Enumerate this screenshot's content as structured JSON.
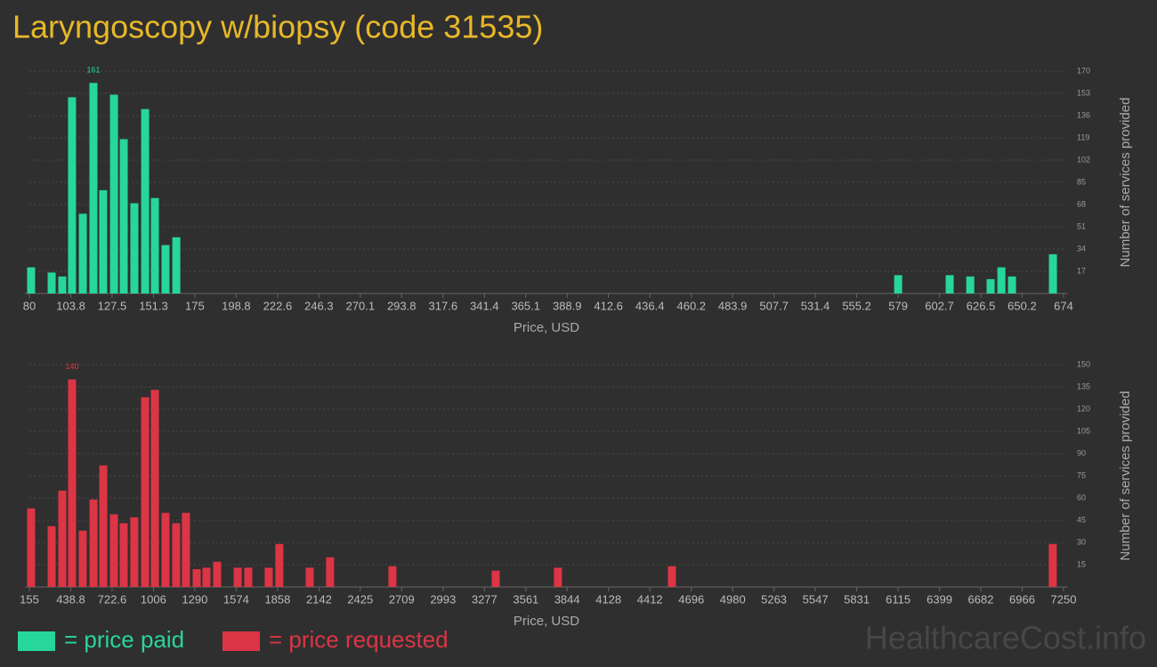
{
  "title": "Laryngoscopy w/biopsy (code 31535)",
  "watermark": "HealthcareCost.info",
  "chart_data": [
    {
      "type": "bar",
      "x": [
        81.0,
        92.8,
        98.9,
        104.5,
        110.7,
        116.8,
        122.4,
        128.6,
        134.2,
        140.3,
        146.5,
        152.1,
        158.2,
        164.4,
        579.0,
        608.6,
        620.4,
        632.1,
        638.3,
        644.4,
        667.9
      ],
      "series": [
        {
          "name": "= price paid",
          "color": "#27d69a",
          "values": [
            20,
            16,
            13,
            150,
            61,
            161,
            79,
            152,
            118,
            69,
            141,
            73,
            37,
            43,
            14,
            14,
            13,
            11,
            20,
            13,
            30
          ]
        }
      ],
      "xlim": [
        80,
        674
      ],
      "xticks": [
        80,
        103.8,
        127.5,
        151.3,
        175,
        198.8,
        222.6,
        246.3,
        270.1,
        293.8,
        317.6,
        341.4,
        365.1,
        388.9,
        412.6,
        436.4,
        460.2,
        483.9,
        507.7,
        531.4,
        555.2,
        579,
        602.7,
        626.5,
        650.2,
        674
      ],
      "ylim": [
        0,
        170
      ],
      "yticks": [
        17,
        34,
        51,
        68,
        85,
        102,
        119,
        136,
        153,
        170
      ],
      "xlabel": "Price, USD",
      "ylabel": "Number of services provided",
      "grid": true
    },
    {
      "type": "bar",
      "x": [
        167,
        308,
        381,
        448,
        521,
        595,
        662,
        735,
        802,
        875,
        949,
        1016,
        1089,
        1162,
        1229,
        1303,
        1370,
        1443,
        1584,
        1657,
        1797,
        1870,
        2078,
        2218,
        2646,
        3354,
        3781,
        4563,
        7176
      ],
      "series": [
        {
          "name": "= price requested",
          "color": "#dc3545",
          "values": [
            53,
            41,
            65,
            140,
            38,
            59,
            82,
            49,
            43,
            47,
            128,
            133,
            50,
            43,
            50,
            12,
            13,
            17,
            13,
            13,
            13,
            29,
            13,
            20,
            14,
            11,
            13,
            14,
            29
          ]
        }
      ],
      "xlim": [
        155,
        7250
      ],
      "xticks": [
        155,
        438.8,
        722.6,
        1006,
        1290,
        1574,
        1858,
        2142,
        2425,
        2709,
        2993,
        3277,
        3561,
        3844,
        4128,
        4412,
        4696,
        4980,
        5263,
        5547,
        5831,
        6115,
        6399,
        6682,
        6966,
        7250
      ],
      "ylim": [
        0,
        150
      ],
      "yticks": [
        15,
        30,
        45,
        60,
        75,
        90,
        105,
        120,
        135,
        150
      ],
      "xlabel": "Price, USD",
      "ylabel": "Number of services provided",
      "grid": true
    }
  ]
}
